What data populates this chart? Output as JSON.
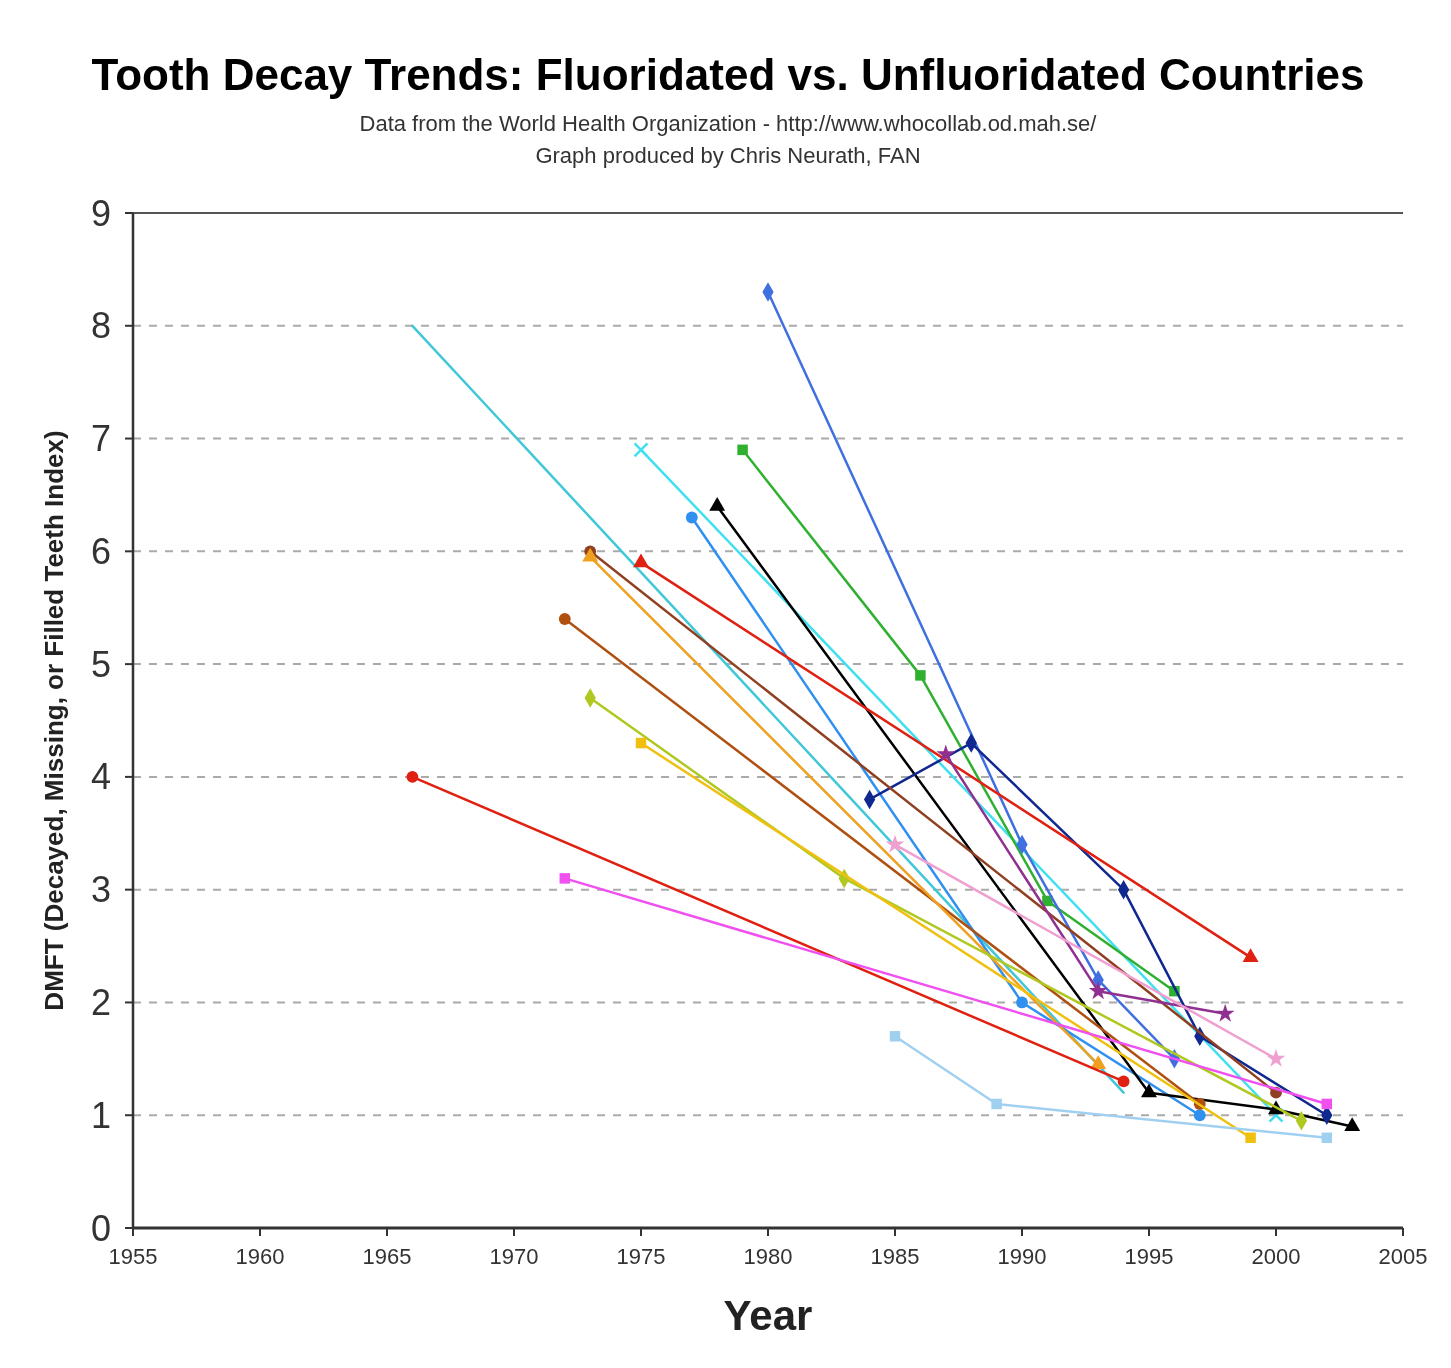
{
  "chart_data": {
    "type": "line",
    "title": "Tooth Decay Trends:  Fluoridated vs. Unfluoridated Countries",
    "subtitle": "Data from the World Health Organization - http://www.whocollab.od.mah.se/",
    "annotations": [
      "Graph produced by Chris Neurath, FAN"
    ],
    "xlabel": "Year",
    "ylabel": "DMFT (Decayed, Missing, or Filled Teeth Index)",
    "xlim": [
      1955,
      2005
    ],
    "xticks": [
      1955,
      1960,
      1965,
      1970,
      1975,
      1980,
      1985,
      1990,
      1995,
      2000,
      2005
    ],
    "ylim": [
      0,
      9
    ],
    "yticks": [
      0,
      1,
      2,
      3,
      4,
      5,
      6,
      7,
      8,
      9
    ],
    "grid": "y",
    "line_style": "solid",
    "series": [
      {
        "color": "#40c8d8",
        "marker": "none",
        "x": [
          1966,
          1994
        ],
        "values": [
          8.0,
          1.2
        ]
      },
      {
        "color": "#40e0f0",
        "marker": "cross",
        "x": [
          1975,
          2000
        ],
        "values": [
          6.9,
          1.0
        ]
      },
      {
        "color": "#3090f0",
        "marker": "circle",
        "x": [
          1977,
          1990,
          1997
        ],
        "values": [
          6.3,
          2.0,
          1.0
        ]
      },
      {
        "color": "#000000",
        "marker": "triangle",
        "x": [
          1978,
          1995,
          2000,
          2003
        ],
        "values": [
          6.4,
          1.2,
          1.05,
          0.9
        ]
      },
      {
        "color": "#30b030",
        "marker": "square",
        "x": [
          1979,
          1986,
          1991,
          1996
        ],
        "values": [
          6.9,
          4.9,
          2.9,
          2.1
        ]
      },
      {
        "color": "#4070e0",
        "marker": "diamond",
        "x": [
          1980,
          1990,
          1993,
          1996
        ],
        "values": [
          8.3,
          3.4,
          2.2,
          1.5
        ]
      },
      {
        "color": "#102890",
        "marker": "diamond",
        "x": [
          1984,
          1988,
          1994,
          1997,
          2002
        ],
        "values": [
          3.8,
          4.3,
          3.0,
          1.7,
          1.0
        ]
      },
      {
        "color": "#e02010",
        "marker": "triangle",
        "x": [
          1975,
          1999
        ],
        "values": [
          5.9,
          2.4
        ]
      },
      {
        "color": "#904020",
        "marker": "circle",
        "x": [
          1973,
          2000
        ],
        "values": [
          6.0,
          1.2
        ]
      },
      {
        "color": "#b05010",
        "marker": "circle",
        "x": [
          1972,
          1997
        ],
        "values": [
          5.4,
          1.1
        ]
      },
      {
        "color": "#f0a020",
        "marker": "triangle",
        "x": [
          1973,
          1993
        ],
        "values": [
          5.95,
          1.45
        ]
      },
      {
        "color": "#b0c820",
        "marker": "diamond",
        "x": [
          1973,
          1983,
          2001
        ],
        "values": [
          4.7,
          3.1,
          0.95
        ]
      },
      {
        "color": "#f0c010",
        "marker": "square",
        "x": [
          1975,
          1999
        ],
        "values": [
          4.3,
          0.8
        ]
      },
      {
        "color": "#e02010",
        "marker": "circle",
        "x": [
          1966,
          1994
        ],
        "values": [
          4.0,
          1.3
        ]
      },
      {
        "color": "#f050f0",
        "marker": "square",
        "x": [
          1972,
          2002
        ],
        "values": [
          3.1,
          1.1
        ]
      },
      {
        "color": "#903090",
        "marker": "star",
        "x": [
          1987,
          1993,
          1998
        ],
        "values": [
          4.2,
          2.1,
          1.9
        ]
      },
      {
        "color": "#f0a0d0",
        "marker": "star",
        "x": [
          1985,
          2000
        ],
        "values": [
          3.4,
          1.5
        ]
      },
      {
        "color": "#a0d0f0",
        "marker": "square",
        "x": [
          1985,
          1989,
          2002
        ],
        "values": [
          1.7,
          1.1,
          0.8
        ]
      }
    ]
  }
}
